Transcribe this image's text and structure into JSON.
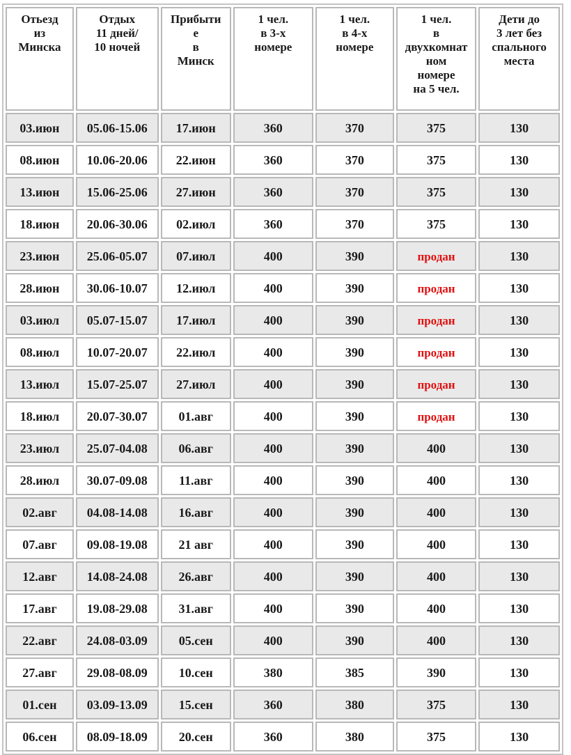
{
  "headers": [
    "Отьезд из Минска",
    "Отдых 11 дней/ 10 ночей",
    "Прибытие в Минск",
    "1 чел. в 3-х номере",
    "1 чел. в 4-х номере",
    "1 чел. в двухкомнатном номере на 5 чел.",
    "Дети до 3 лет без спального места"
  ],
  "header_lines": [
    [
      "Отьезд",
      "из",
      "Минска"
    ],
    [
      "Отдых",
      "11 дней/",
      "10 ночей"
    ],
    [
      "Прибыти",
      "е",
      "в",
      "Минск"
    ],
    [
      "1 чел.",
      "в 3-х",
      "номере"
    ],
    [
      "1 чел.",
      "в 4-х",
      "номере"
    ],
    [
      "1 чел.",
      "в",
      "двухкомнат",
      "ном",
      "номере",
      "на 5 чел."
    ],
    [
      "Дети до",
      "3 лет без",
      "спального",
      "места"
    ]
  ],
  "sold_color": "#e01010",
  "rows": [
    [
      "03.июн",
      "05.06-15.06",
      "17.июн",
      "360",
      "370",
      "375",
      "130"
    ],
    [
      "08.июн",
      "10.06-20.06",
      "22.июн",
      "360",
      "370",
      "375",
      "130"
    ],
    [
      "13.июн",
      "15.06-25.06",
      "27.июн",
      "360",
      "370",
      "375",
      "130"
    ],
    [
      "18.июн",
      "20.06-30.06",
      "02.июл",
      "360",
      "370",
      "375",
      "130"
    ],
    [
      "23.июн",
      "25.06-05.07",
      "07.июл",
      "400",
      "390",
      "продан",
      "130"
    ],
    [
      "28.июн",
      "30.06-10.07",
      "12.июл",
      "400",
      "390",
      "продан",
      "130"
    ],
    [
      "03.июл",
      "05.07-15.07",
      "17.июл",
      "400",
      "390",
      "продан",
      "130"
    ],
    [
      "08.июл",
      "10.07-20.07",
      "22.июл",
      "400",
      "390",
      "продан",
      "130"
    ],
    [
      "13.июл",
      "15.07-25.07",
      "27.июл",
      "400",
      "390",
      "продан",
      "130"
    ],
    [
      "18.июл",
      "20.07-30.07",
      "01.авг",
      "400",
      "390",
      "продан",
      "130"
    ],
    [
      "23.июл",
      "25.07-04.08",
      "06.авг",
      "400",
      "390",
      "400",
      "130"
    ],
    [
      "28.июл",
      "30.07-09.08",
      "11.авг",
      "400",
      "390",
      "400",
      "130"
    ],
    [
      "02.авг",
      "04.08-14.08",
      "16.авг",
      "400",
      "390",
      "400",
      "130"
    ],
    [
      "07.авг",
      "09.08-19.08",
      "21 авг",
      "400",
      "390",
      "400",
      "130"
    ],
    [
      "12.авг",
      "14.08-24.08",
      "26.авг",
      "400",
      "390",
      "400",
      "130"
    ],
    [
      "17.авг",
      "19.08-29.08",
      "31.авг",
      "400",
      "390",
      "400",
      "130"
    ],
    [
      "22.авг",
      "24.08-03.09",
      "05.сен",
      "400",
      "390",
      "400",
      "130"
    ],
    [
      "27.авг",
      "29.08-08.09",
      "10.сен",
      "380",
      "385",
      "390",
      "130"
    ],
    [
      "01.сен",
      "03.09-13.09",
      "15.сен",
      "360",
      "380",
      "375",
      "130"
    ],
    [
      "06.сен",
      "08.09-18.09",
      "20.сен",
      "360",
      "380",
      "375",
      "130"
    ]
  ]
}
